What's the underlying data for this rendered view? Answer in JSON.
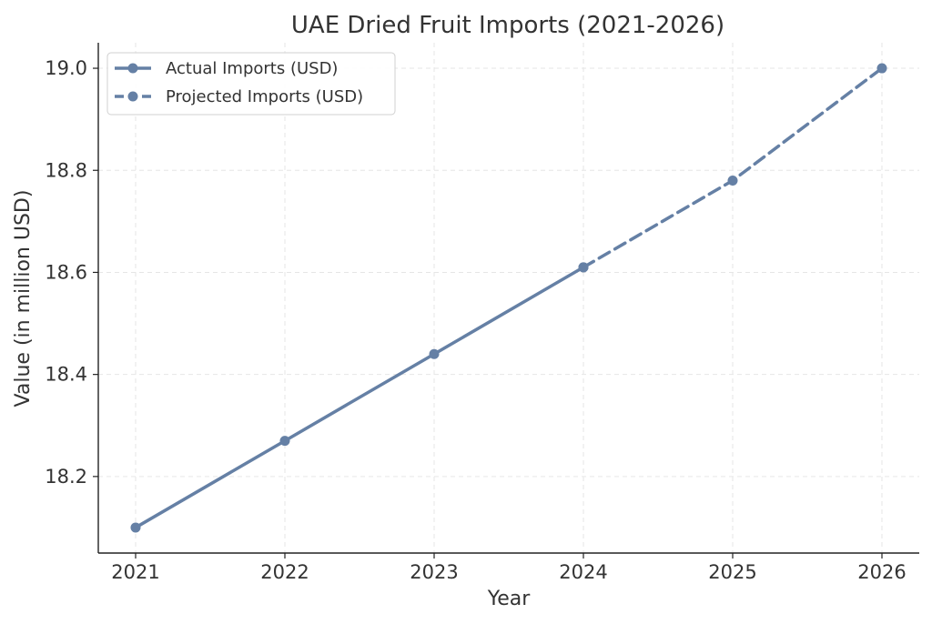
{
  "chart_data": {
    "type": "line",
    "title": "UAE Dried Fruit Imports (2021-2026)",
    "xlabel": "Year",
    "ylabel": "Value (in million USD)",
    "x": [
      2021,
      2022,
      2023,
      2024,
      2025,
      2026
    ],
    "x_tick_labels": [
      "2021",
      "2022",
      "2023",
      "2024",
      "2025",
      "2026"
    ],
    "y_ticks": [
      18.2,
      18.4,
      18.6,
      18.8,
      19.0
    ],
    "y_tick_labels": [
      "18.2",
      "18.4",
      "18.6",
      "18.8",
      "19.0"
    ],
    "ylim": [
      18.05,
      19.05
    ],
    "grid": true,
    "legend_position": "top-left",
    "series": [
      {
        "name": "Actual Imports (USD)",
        "style": "solid",
        "color": "#6580a5",
        "x": [
          2021,
          2022,
          2023,
          2024
        ],
        "y": [
          18.1,
          18.27,
          18.44,
          18.61
        ]
      },
      {
        "name": "Projected Imports (USD)",
        "style": "dashed",
        "color": "#6580a5",
        "x": [
          2024,
          2025,
          2026
        ],
        "y": [
          18.61,
          18.78,
          19.0
        ]
      }
    ]
  }
}
